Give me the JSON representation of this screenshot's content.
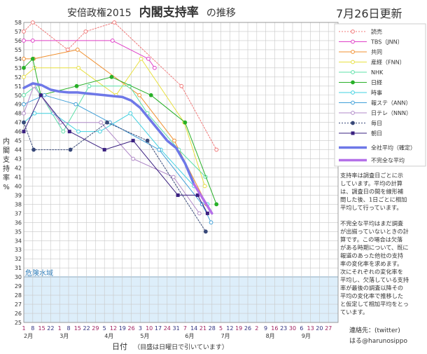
{
  "chart_data": {
    "type": "line",
    "title_prefix": "安倍政権2015",
    "title_main": "内閣支持率",
    "title_suffix": "の推移",
    "update_label": "7月26日更新",
    "ylabel_chars": [
      "内",
      "閣",
      "支",
      "持",
      "率",
      "%"
    ],
    "xlabel": "日付",
    "xlabel_note": "（目盛は日曜日で引いています）",
    "ylim": [
      25,
      58
    ],
    "x_ticks": [
      "1",
      "8",
      "15",
      "22",
      "1",
      "8",
      "15",
      "22",
      "29",
      "5",
      "12",
      "19",
      "26",
      "3",
      "10",
      "17",
      "24",
      "31",
      "7",
      "14",
      "21",
      "28",
      "5",
      "12",
      "19",
      "26",
      "2",
      "9",
      "16",
      "23",
      "30",
      "6",
      "13",
      "20",
      "27"
    ],
    "x_start_index": 0,
    "months": [
      {
        "label": "2月",
        "tick_index": 0
      },
      {
        "label": "3月",
        "tick_index": 4
      },
      {
        "label": "4月",
        "tick_index": 9
      },
      {
        "label": "5月",
        "tick_index": 13
      },
      {
        "label": "6月",
        "tick_index": 18
      },
      {
        "label": "7月",
        "tick_index": 22
      },
      {
        "label": "8月",
        "tick_index": 27
      },
      {
        "label": "9月",
        "tick_index": 31
      }
    ],
    "danger_zone": {
      "label": "危険水域",
      "from": 25,
      "to": 30
    },
    "series": [
      {
        "name": "読売",
        "color": "#f07878",
        "dash": "2,2",
        "marker": "circle",
        "width": 1,
        "points": [
          [
            0,
            57
          ],
          [
            1,
            58
          ],
          [
            4.9,
            55
          ],
          [
            6.9,
            57
          ],
          [
            10.1,
            58
          ],
          [
            17.6,
            51
          ],
          [
            21.5,
            44
          ]
        ]
      },
      {
        "name": "TBS（JNN）",
        "color": "#e040c8",
        "dash": "",
        "marker": "circle",
        "width": 1,
        "points": [
          [
            0,
            56
          ],
          [
            1,
            56
          ],
          [
            9.9,
            56
          ],
          [
            13.9,
            54
          ],
          [
            14.6,
            53
          ]
        ]
      },
      {
        "name": "共同",
        "color": "#f09030",
        "dash": "",
        "marker": "circle",
        "width": 1,
        "points": [
          [
            0,
            54
          ],
          [
            1.1,
            54
          ],
          [
            6.0,
            55
          ],
          [
            12.9,
            50
          ],
          [
            16.8,
            45
          ],
          [
            20.4,
            38
          ]
        ]
      },
      {
        "name": "産経（FNN）",
        "color": "#e8e040",
        "dash": "",
        "marker": "circle",
        "width": 1,
        "points": [
          [
            0,
            52
          ],
          [
            1.2,
            53
          ],
          [
            6.1,
            53
          ],
          [
            10.3,
            50
          ],
          [
            13.1,
            54
          ],
          [
            17.9,
            47
          ],
          [
            20.2,
            40
          ]
        ]
      },
      {
        "name": "NHK",
        "color": "#5ce0a8",
        "dash": "",
        "marker": "circle",
        "width": 1,
        "points": [
          [
            0,
            50
          ],
          [
            1.3,
            51
          ],
          [
            4.4,
            46
          ],
          [
            7.3,
            51
          ],
          [
            11.8,
            51
          ],
          [
            13.8,
            48
          ],
          [
            17.3,
            44
          ],
          [
            20.3,
            41
          ]
        ]
      },
      {
        "name": "日経",
        "color": "#28b028",
        "dash": "",
        "marker": "circle_filled",
        "width": 1,
        "points": [
          [
            0,
            53
          ],
          [
            1.0,
            54
          ],
          [
            1.9,
            50
          ],
          [
            5.9,
            51
          ],
          [
            9.8,
            52
          ],
          [
            14.2,
            50
          ],
          [
            18.0,
            47
          ],
          [
            21.5,
            38
          ]
        ]
      },
      {
        "name": "時事",
        "color": "#40d0e0",
        "dash": "",
        "marker": "circle",
        "width": 1,
        "points": [
          [
            0,
            47
          ],
          [
            1.2,
            48
          ],
          [
            3.3,
            48
          ],
          [
            6.1,
            46
          ],
          [
            8.5,
            46
          ],
          [
            11.9,
            48
          ],
          [
            15.3,
            44
          ],
          [
            19.0,
            40
          ],
          [
            20.5,
            38
          ]
        ]
      },
      {
        "name": "報ステ（ANN）",
        "color": "#40a0d8",
        "dash": "",
        "marker": "circle",
        "width": 1,
        "points": [
          [
            0,
            49
          ],
          [
            2.3,
            50
          ],
          [
            5.8,
            49
          ],
          [
            9.6,
            47
          ],
          [
            15.1,
            44
          ],
          [
            19.9,
            38
          ],
          [
            20.9,
            36
          ]
        ]
      },
      {
        "name": "日テレ（NNN）",
        "color": "#b08ac8",
        "dash": "",
        "marker": "circle",
        "width": 1,
        "points": [
          [
            0,
            48
          ],
          [
            1.1,
            51
          ],
          [
            4.1,
            47
          ],
          [
            8.6,
            47
          ],
          [
            12.2,
            43
          ],
          [
            16.7,
            41
          ],
          [
            19.6,
            37
          ]
        ]
      },
      {
        "name": "毎日",
        "color": "#384878",
        "dash": "2,2",
        "marker": "circle_filled",
        "width": 1,
        "points": [
          [
            0,
            47
          ],
          [
            1.1,
            44
          ],
          [
            5.2,
            44
          ],
          [
            9.3,
            47
          ],
          [
            13.8,
            45
          ],
          [
            20.3,
            35
          ]
        ]
      },
      {
        "name": "朝日",
        "color": "#3a2080",
        "dash": "",
        "marker": "square",
        "width": 1,
        "points": [
          [
            0,
            46
          ],
          [
            1.9,
            50
          ],
          [
            5.1,
            46
          ],
          [
            9.0,
            44
          ],
          [
            12.2,
            45
          ],
          [
            17.2,
            39
          ],
          [
            19.4,
            39
          ],
          [
            20.5,
            37
          ]
        ]
      },
      {
        "name": "全社平均（確定）",
        "color": "#6e78e8",
        "dash": "",
        "marker": "none",
        "width": 3.5,
        "points": [
          [
            0,
            50.8
          ],
          [
            1,
            51.3
          ],
          [
            2,
            51.1
          ],
          [
            3,
            50.6
          ],
          [
            4,
            50.4
          ],
          [
            5,
            50.3
          ],
          [
            6,
            50.3
          ],
          [
            7,
            50.2
          ],
          [
            8,
            50.1
          ],
          [
            9,
            50.0
          ],
          [
            10,
            49.9
          ],
          [
            11,
            49.8
          ],
          [
            12,
            49.4
          ],
          [
            13,
            48.6
          ],
          [
            14,
            47.4
          ],
          [
            15,
            46.2
          ],
          [
            16,
            45.0
          ],
          [
            17,
            44.2
          ],
          [
            18,
            42.5
          ],
          [
            19,
            40.2
          ]
        ]
      },
      {
        "name": "不完全な平均",
        "color": "#b470e8",
        "dash": "",
        "marker": "none",
        "width": 3.5,
        "points": [
          [
            19,
            40.2
          ],
          [
            20,
            38.6
          ],
          [
            21,
            37.0
          ]
        ]
      }
    ]
  },
  "notes": {
    "lines1": [
      "支持率は調査日ごとに示",
      "しています。平均の計算",
      "は、調査日の間を線形補",
      "間した後、1日ごとに相加",
      "平均して行っています。"
    ],
    "lines2": [
      "不完全な平均はまだ調査",
      "が出揃っていないときの計",
      "算です。この場合は欠落",
      "がある時期について、既に",
      "報道のあった他社の支持",
      "率の変化率を求めます。",
      "次にそれぞれの変化率を",
      "平均し、欠落している支持",
      "率が最後の調査以降その",
      "平均の変化率で推移した",
      "と仮定して相加平均をとっ",
      "ています。"
    ]
  },
  "contact": {
    "line1": "連絡先：(twitter)",
    "line2": "はる@harunosippo"
  }
}
